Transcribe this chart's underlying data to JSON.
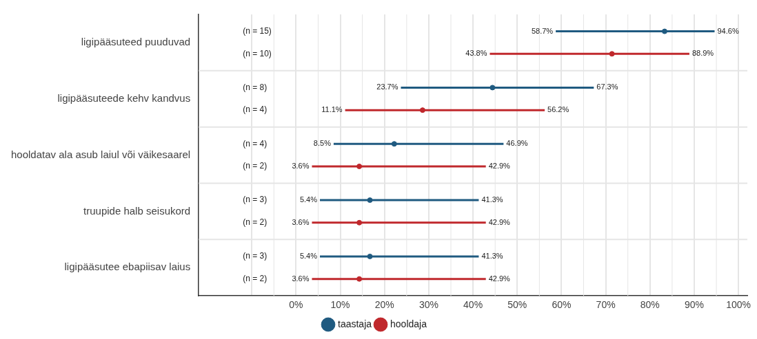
{
  "chart_data": {
    "type": "scatter",
    "orientation": "horizontal",
    "categories": [
      "ligipääsuteed puuduvad",
      "ligipääsuteede kehv kandvus",
      "hooldatav ala asub laiul või väikesaarel",
      "truupide halb seisukord",
      "ligipääsutee ebapiisav laius"
    ],
    "series": [
      {
        "name": "taastaja",
        "color": "#1f5a80",
        "values": [
          83.3,
          44.4,
          22.2,
          16.7,
          16.7
        ],
        "errors": [
          [
            58.7,
            94.6
          ],
          [
            23.7,
            67.3
          ],
          [
            8.5,
            46.9
          ],
          [
            5.4,
            41.3
          ],
          [
            5.4,
            41.3
          ]
        ]
      },
      {
        "name": "hooldaja",
        "color": "#c0282c",
        "values": [
          71.4,
          28.6,
          14.3,
          14.3,
          14.3
        ],
        "errors": [
          [
            43.8,
            88.9
          ],
          [
            11.1,
            56.2
          ],
          [
            3.6,
            42.9
          ],
          [
            3.6,
            42.9
          ],
          [
            3.6,
            42.9
          ]
        ]
      }
    ],
    "xlim": [
      -22,
      102
    ],
    "xticks": [
      {
        "value": -10,
        "label": null
      },
      {
        "value": 0,
        "label": "0%"
      },
      {
        "value": 10,
        "label": "10%"
      },
      {
        "value": 20,
        "label": "20%"
      },
      {
        "value": 30,
        "label": "30%"
      },
      {
        "value": 40,
        "label": "40%"
      },
      {
        "value": 50,
        "label": "50%"
      },
      {
        "value": 60,
        "label": "60%"
      },
      {
        "value": 70,
        "label": "70%"
      },
      {
        "value": 80,
        "label": "80%"
      },
      {
        "value": 90,
        "label": "90%"
      },
      {
        "value": 100,
        "label": "100%"
      }
    ],
    "annotations": [
      "(n = 15)",
      "58.7%",
      "94.6%",
      "(n = 10)",
      "43.8%",
      "88.9%",
      "(n = 8)",
      "23.7%",
      "67.3%",
      "(n = 4)",
      "11.1%",
      "56.2%",
      "(n = 4)",
      "8.5%",
      "46.9%",
      "(n = 2)",
      "3.6%",
      "42.9%",
      "(n = 3)",
      "5.4%",
      "41.3%",
      "(n = 2)",
      "3.6%",
      "42.9%",
      "(n = 3)",
      "5.4%",
      "41.3%",
      "(n = 2)",
      "3.6%",
      "42.9%"
    ],
    "grid": "x",
    "legend": "bottom",
    "marker": "circle"
  }
}
